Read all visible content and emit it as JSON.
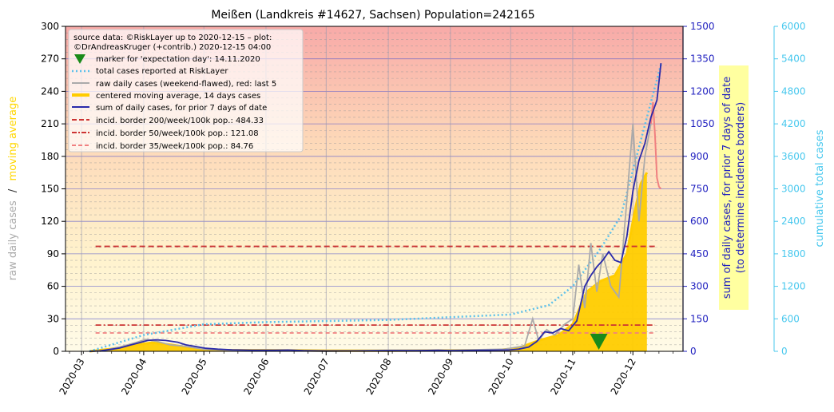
{
  "chart_data": {
    "type": "line",
    "title": "Meißen (Landkreis #14627, Sachsen) Population=242165",
    "colors": {
      "raw": "#aaaaaa",
      "raw_last5": "#f08080",
      "moving_avg": "#ffcc00",
      "moving_avg_label": "#ffd700",
      "sum7": "#2a2aaa",
      "total": "#5bc0eb",
      "axis_blue": "#1f1fbf",
      "axis_cyan": "#48c8ee",
      "border200": "#cc3333",
      "border35": "#f08080",
      "legend_bg": "#ffffff",
      "annotation_bg": "#ffffa0",
      "marker": "#1a8a1a"
    },
    "x_ticks": [
      "2020-03",
      "2020-04",
      "2020-05",
      "2020-06",
      "2020-07",
      "2020-08",
      "2020-09",
      "2020-10",
      "2020-11",
      "2020-12"
    ],
    "x_range": [
      "2020-02-22",
      "2020-12-26"
    ],
    "y_left": {
      "label_part1": "raw daily cases",
      "label_sep": "/",
      "label_part2": "moving average",
      "range": [
        0,
        300
      ],
      "ticks": [
        "0",
        "30",
        "60",
        "90",
        "120",
        "150",
        "180",
        "210",
        "240",
        "270",
        "300"
      ]
    },
    "y_right1": {
      "label_line1": "sum of daily cases, for prior 7 days of date",
      "label_line2": "(to determine incidence borders)",
      "range": [
        0,
        1500
      ],
      "ticks": [
        "0",
        "150",
        "300",
        "450",
        "600",
        "750",
        "900",
        "1050",
        "1200",
        "1350",
        "1500"
      ]
    },
    "y_right2": {
      "label": "cumulative total cases",
      "range": [
        0,
        6000
      ],
      "ticks": [
        "0",
        "600",
        "1200",
        "1800",
        "2400",
        "3000",
        "3600",
        "4200",
        "4800",
        "5400",
        "6000"
      ]
    },
    "legend": {
      "source_line1": "source data: ©RiskLayer up to 2020-12-15 – plot:",
      "source_line2": "©DrAndreasKruger (+contrib.) 2020-12-15 04:00",
      "items": [
        {
          "key": "marker",
          "label": "marker for 'expectation day': 14.11.2020"
        },
        {
          "key": "total",
          "label": "total cases reported at RiskLayer"
        },
        {
          "key": "raw",
          "label": "raw daily cases (weekend-flawed), red: last 5"
        },
        {
          "key": "moving_avg",
          "label": "centered moving average, 14 days cases"
        },
        {
          "key": "sum7",
          "label": "sum of daily cases, for prior 7 days of date"
        },
        {
          "key": "b200",
          "label": "incid. border 200/week/100k pop.: 484.33"
        },
        {
          "key": "b50",
          "label": "incid. border 50/week/100k pop.: 121.08"
        },
        {
          "key": "b35",
          "label": "incid. border 35/week/100k pop.: 84.76"
        }
      ]
    },
    "expectation_day": "2020-11-14",
    "borders": [
      {
        "name": "200",
        "value_sum7": 484.33,
        "start": "2020-03-08",
        "end": "2020-12-12"
      },
      {
        "name": "50",
        "value_sum7": 121.08,
        "start": "2020-03-08",
        "end": "2020-12-12"
      },
      {
        "name": "35",
        "value_sum7": 84.76,
        "start": "2020-03-08",
        "end": "2020-12-12"
      }
    ],
    "series": [
      {
        "key": "sum7",
        "axis": "right1",
        "points": [
          [
            "2020-03-05",
            0
          ],
          [
            "2020-03-10",
            2
          ],
          [
            "2020-03-15",
            8
          ],
          [
            "2020-03-20",
            15
          ],
          [
            "2020-03-25",
            28
          ],
          [
            "2020-03-30",
            40
          ],
          [
            "2020-04-03",
            50
          ],
          [
            "2020-04-07",
            53
          ],
          [
            "2020-04-12",
            50
          ],
          [
            "2020-04-18",
            42
          ],
          [
            "2020-04-22",
            30
          ],
          [
            "2020-04-27",
            22
          ],
          [
            "2020-05-02",
            14
          ],
          [
            "2020-05-08",
            10
          ],
          [
            "2020-05-15",
            7
          ],
          [
            "2020-05-25",
            5
          ],
          [
            "2020-06-05",
            5
          ],
          [
            "2020-06-12",
            6
          ],
          [
            "2020-06-20",
            3
          ],
          [
            "2020-07-01",
            2
          ],
          [
            "2020-07-15",
            2
          ],
          [
            "2020-08-01",
            3
          ],
          [
            "2020-08-15",
            3
          ],
          [
            "2020-08-26",
            5
          ],
          [
            "2020-09-01",
            3
          ],
          [
            "2020-09-10",
            4
          ],
          [
            "2020-09-20",
            5
          ],
          [
            "2020-09-30",
            6
          ],
          [
            "2020-10-05",
            10
          ],
          [
            "2020-10-10",
            20
          ],
          [
            "2020-10-14",
            45
          ],
          [
            "2020-10-18",
            90
          ],
          [
            "2020-10-22",
            85
          ],
          [
            "2020-10-26",
            105
          ],
          [
            "2020-10-30",
            95
          ],
          [
            "2020-11-03",
            140
          ],
          [
            "2020-11-07",
            300
          ],
          [
            "2020-11-10",
            350
          ],
          [
            "2020-11-13",
            390
          ],
          [
            "2020-11-16",
            420
          ],
          [
            "2020-11-19",
            460
          ],
          [
            "2020-11-22",
            420
          ],
          [
            "2020-11-25",
            410
          ],
          [
            "2020-11-28",
            530
          ],
          [
            "2020-12-01",
            740
          ],
          [
            "2020-12-04",
            880
          ],
          [
            "2020-12-07",
            960
          ],
          [
            "2020-12-10",
            1080
          ],
          [
            "2020-12-13",
            1160
          ],
          [
            "2020-12-15",
            1330
          ]
        ]
      },
      {
        "key": "moving_avg",
        "axis": "left",
        "points": [
          [
            "2020-03-05",
            0
          ],
          [
            "2020-03-15",
            2
          ],
          [
            "2020-03-25",
            5
          ],
          [
            "2020-04-05",
            8
          ],
          [
            "2020-04-15",
            6
          ],
          [
            "2020-04-25",
            3
          ],
          [
            "2020-05-10",
            1
          ],
          [
            "2020-06-01",
            1
          ],
          [
            "2020-07-01",
            0.5
          ],
          [
            "2020-08-01",
            0.5
          ],
          [
            "2020-09-01",
            0.8
          ],
          [
            "2020-09-25",
            1.2
          ],
          [
            "2020-10-05",
            3
          ],
          [
            "2020-10-15",
            10
          ],
          [
            "2020-10-25",
            15
          ],
          [
            "2020-11-01",
            25
          ],
          [
            "2020-11-08",
            55
          ],
          [
            "2020-11-15",
            65
          ],
          [
            "2020-11-22",
            70
          ],
          [
            "2020-11-28",
            90
          ],
          [
            "2020-12-02",
            130
          ],
          [
            "2020-12-05",
            155
          ],
          [
            "2020-12-08",
            165
          ]
        ]
      },
      {
        "key": "raw",
        "axis": "left",
        "points": [
          [
            "2020-03-10",
            0
          ],
          [
            "2020-03-20",
            4
          ],
          [
            "2020-03-28",
            8
          ],
          [
            "2020-04-02",
            11
          ],
          [
            "2020-04-08",
            9
          ],
          [
            "2020-04-14",
            6
          ],
          [
            "2020-04-20",
            5
          ],
          [
            "2020-05-01",
            2
          ],
          [
            "2020-05-15",
            1
          ],
          [
            "2020-06-05",
            1
          ],
          [
            "2020-07-01",
            0
          ],
          [
            "2020-08-01",
            1
          ],
          [
            "2020-09-01",
            1
          ],
          [
            "2020-09-28",
            2
          ],
          [
            "2020-10-08",
            5
          ],
          [
            "2020-10-12",
            30
          ],
          [
            "2020-10-15",
            10
          ],
          [
            "2020-10-19",
            20
          ],
          [
            "2020-10-23",
            15
          ],
          [
            "2020-10-28",
            25
          ],
          [
            "2020-11-01",
            30
          ],
          [
            "2020-11-04",
            80
          ],
          [
            "2020-11-07",
            40
          ],
          [
            "2020-11-10",
            100
          ],
          [
            "2020-11-13",
            55
          ],
          [
            "2020-11-16",
            90
          ],
          [
            "2020-11-20",
            60
          ],
          [
            "2020-11-24",
            50
          ],
          [
            "2020-11-28",
            140
          ],
          [
            "2020-12-01",
            210
          ],
          [
            "2020-12-04",
            120
          ],
          [
            "2020-12-07",
            180
          ],
          [
            "2020-12-10",
            210
          ]
        ]
      },
      {
        "key": "raw_last5",
        "axis": "left",
        "points": [
          [
            "2020-12-10",
            210
          ],
          [
            "2020-12-11",
            230
          ],
          [
            "2020-12-12",
            200
          ],
          [
            "2020-12-13",
            160
          ],
          [
            "2020-12-14",
            152
          ],
          [
            "2020-12-15",
            150
          ]
        ]
      },
      {
        "key": "total",
        "axis": "right2",
        "points": [
          [
            "2020-03-05",
            0
          ],
          [
            "2020-04-01",
            300
          ],
          [
            "2020-05-01",
            500
          ],
          [
            "2020-06-01",
            540
          ],
          [
            "2020-08-01",
            580
          ],
          [
            "2020-10-01",
            680
          ],
          [
            "2020-10-20",
            850
          ],
          [
            "2020-11-01",
            1200
          ],
          [
            "2020-11-15",
            1900
          ],
          [
            "2020-11-25",
            2500
          ],
          [
            "2020-12-05",
            3900
          ],
          [
            "2020-12-15",
            5300
          ]
        ]
      }
    ]
  }
}
